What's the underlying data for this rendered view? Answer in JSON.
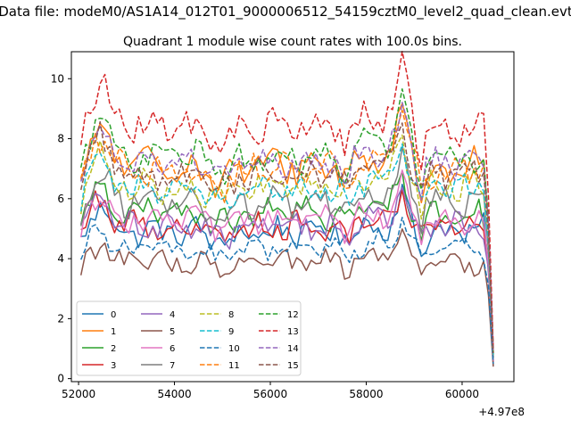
{
  "chart_data": {
    "type": "line",
    "suptitle": "Data file: modeM0/AS1A14_012T01_9000006512_54159cztM0_level2_quad_clean.evt",
    "title": "Quadrant 1 module wise count rates with 100.0s bins.",
    "xlabel": "",
    "ylabel": "",
    "x_offset_label": "+4.97e8",
    "xlim": [
      51850,
      61080
    ],
    "ylim": [
      -0.1,
      10.9
    ],
    "x_ticks": [
      52000,
      54000,
      56000,
      58000,
      60000
    ],
    "x_tick_labels": [
      "52000",
      "54000",
      "56000",
      "58000",
      "60000"
    ],
    "y_ticks": [
      0,
      2,
      4,
      6,
      8,
      10
    ],
    "y_tick_labels": [
      "0",
      "2",
      "4",
      "6",
      "8",
      "10"
    ],
    "x_start": 52050,
    "x_step": 100,
    "x_last": 60650,
    "legend_position": "lower-left",
    "legend_columns": 4,
    "series": [
      {
        "name": "0",
        "color": "#1f77b4",
        "dash": "solid",
        "base": 4.9,
        "amp": 0.45,
        "end": 0.45
      },
      {
        "name": "1",
        "color": "#ff7f0e",
        "dash": "solid",
        "base": 7.1,
        "amp": 0.55,
        "end": 0.8
      },
      {
        "name": "2",
        "color": "#2ca02c",
        "dash": "solid",
        "base": 5.5,
        "amp": 0.45,
        "end": 0.7
      },
      {
        "name": "3",
        "color": "#d62728",
        "dash": "solid",
        "base": 5.1,
        "amp": 0.45,
        "end": 0.6
      },
      {
        "name": "4",
        "color": "#9467bd",
        "dash": "solid",
        "base": 5.1,
        "amp": 0.4,
        "end": 0.55
      },
      {
        "name": "5",
        "color": "#8c564b",
        "dash": "solid",
        "base": 3.85,
        "amp": 0.35,
        "end": 0.4
      },
      {
        "name": "6",
        "color": "#e377c2",
        "dash": "solid",
        "base": 5.3,
        "amp": 0.4,
        "end": 0.6
      },
      {
        "name": "7",
        "color": "#7f7f7f",
        "dash": "solid",
        "base": 5.9,
        "amp": 0.45,
        "end": 0.7
      },
      {
        "name": "8",
        "color": "#bcbd22",
        "dash": "dashed",
        "base": 6.4,
        "amp": 0.45,
        "end": 0.8
      },
      {
        "name": "9",
        "color": "#17becf",
        "dash": "dashed",
        "base": 6.3,
        "amp": 0.4,
        "end": 0.8
      },
      {
        "name": "10",
        "color": "#1f77b4",
        "dash": "dashed",
        "base": 4.3,
        "amp": 0.35,
        "end": 0.5
      },
      {
        "name": "11",
        "color": "#ff7f0e",
        "dash": "dashed",
        "base": 7.0,
        "amp": 0.5,
        "end": 0.85
      },
      {
        "name": "12",
        "color": "#2ca02c",
        "dash": "dashed",
        "base": 7.4,
        "amp": 0.5,
        "end": 0.9
      },
      {
        "name": "13",
        "color": "#d62728",
        "dash": "dashed",
        "base": 8.4,
        "amp": 0.5,
        "end": 1.0
      },
      {
        "name": "14",
        "color": "#9467bd",
        "dash": "dashed",
        "base": 7.2,
        "amp": 0.45,
        "end": 0.9
      },
      {
        "name": "15",
        "color": "#8c564b",
        "dash": "dashed",
        "base": 6.8,
        "amp": 0.45,
        "end": 0.85
      }
    ]
  }
}
